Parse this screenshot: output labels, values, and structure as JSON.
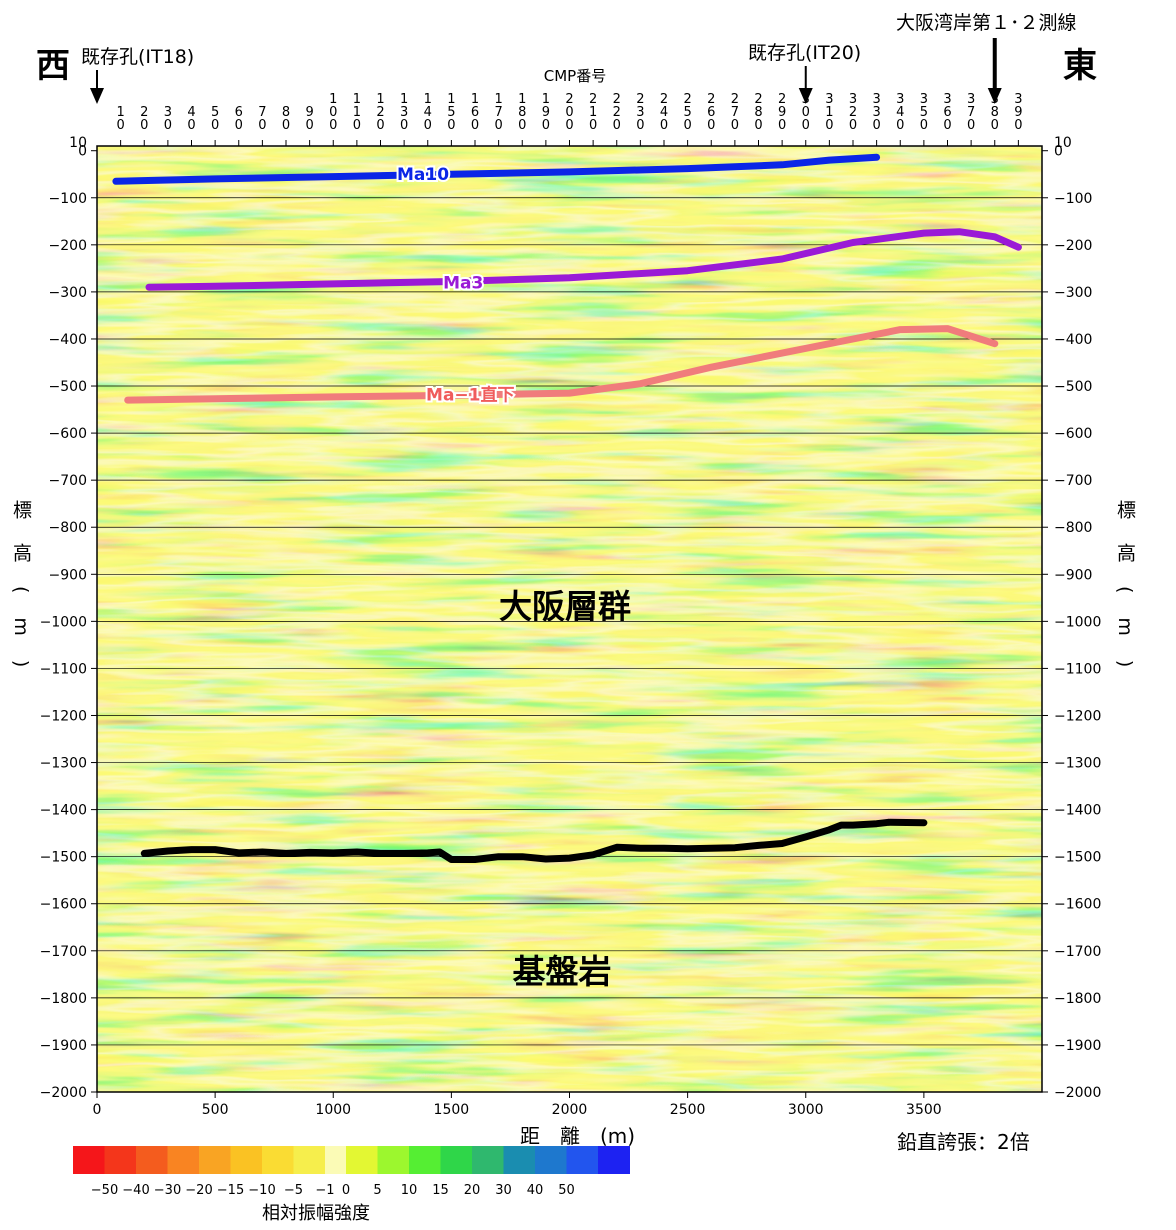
{
  "direction": {
    "west": "西",
    "east": "東"
  },
  "wells": [
    {
      "label": "既存孔(IT18)",
      "x_m": 0
    },
    {
      "label": "既存孔(IT20)",
      "x_m": 3000
    },
    {
      "label": "大阪湾岸第１･２測線",
      "x_m": 3800
    }
  ],
  "cmp": {
    "title": "CMP番号",
    "labels": [
      "10",
      "20",
      "30",
      "40",
      "50",
      "60",
      "70",
      "80",
      "90",
      "100",
      "110",
      "120",
      "130",
      "140",
      "150",
      "160",
      "170",
      "180",
      "190",
      "200",
      "210",
      "220",
      "230",
      "240",
      "250",
      "260",
      "270",
      "280",
      "290",
      "300",
      "310",
      "320",
      "330",
      "340",
      "350",
      "360",
      "370",
      "380",
      "390"
    ]
  },
  "y_axis_label": [
    "標",
    "高",
    "(m)"
  ],
  "y_axis_label_right": [
    "標",
    "高",
    "(m)"
  ],
  "x_axis_label": "距　離　(m)",
  "vertical_exaggeration": "鉛直誇張：2倍",
  "formations": {
    "upper": "大阪層群",
    "lower": "基盤岩"
  },
  "colorbar": {
    "title": "相対振幅強度",
    "neg_colors": [
      "#f5161a",
      "#f4361b",
      "#f45c1e",
      "#f98422",
      "#f9a423",
      "#fac223",
      "#fadc33",
      "#f6ee4c",
      "#fbfbb6"
    ],
    "pos_colors": [
      "#e3f733",
      "#9cf72e",
      "#55ee33",
      "#2fd649",
      "#2fb86e",
      "#1a8db0",
      "#1e78ce",
      "#2255ee",
      "#1d22f2"
    ],
    "neg_labels": [
      "-50",
      "-40",
      "-30",
      "-20",
      "-15",
      "-10",
      "-5",
      "-1"
    ],
    "pos_labels": [
      "0",
      "5",
      "10",
      "15",
      "20",
      "30",
      "40",
      "50"
    ]
  },
  "chart_data": {
    "type": "seismic-section",
    "xlabel": "距　離　(m)",
    "ylabel": "標高(m)",
    "xlim": [
      0,
      4000
    ],
    "ylim": [
      -2000,
      10
    ],
    "xticks": [
      0,
      500,
      1000,
      1500,
      2000,
      2500,
      3000,
      3500
    ],
    "yticks": [
      0,
      -100,
      -200,
      -300,
      -400,
      -500,
      -600,
      -700,
      -800,
      -900,
      -1000,
      -1100,
      -1200,
      -1300,
      -1400,
      -1500,
      -1600,
      -1700,
      -1800,
      -1900,
      -2000
    ],
    "extra_ytick": 10,
    "horizons": [
      {
        "name": "Ma10",
        "color": "#0b26e6",
        "label_color": "#0b26e6",
        "label_x": 1380,
        "label_y": -50,
        "x": [
          80,
          500,
          1000,
          1500,
          2000,
          2500,
          2900,
          3100,
          3300
        ],
        "y": [
          -65,
          -60,
          -55,
          -50,
          -45,
          -38,
          -30,
          -20,
          -14
        ]
      },
      {
        "name": "Ma3",
        "color": "#9a1ad6",
        "label_color": "#9a1ad6",
        "label_x": 1550,
        "label_y": -280,
        "x": [
          220,
          500,
          1000,
          1500,
          2000,
          2500,
          2900,
          3200,
          3500,
          3650,
          3800,
          3900
        ],
        "y": [
          -290,
          -288,
          -283,
          -278,
          -270,
          -255,
          -230,
          -195,
          -175,
          -172,
          -183,
          -205
        ]
      },
      {
        "name": "Ma−1直下",
        "color": "#f07c7c",
        "label_color": "#f05c5c",
        "label_x": 1580,
        "label_y": -518,
        "x": [
          130,
          500,
          1000,
          1500,
          2000,
          2300,
          2600,
          2900,
          3200,
          3400,
          3600,
          3800
        ],
        "y": [
          -530,
          -527,
          -523,
          -520,
          -515,
          -495,
          -460,
          -430,
          -400,
          -380,
          -378,
          -410
        ]
      },
      {
        "name": "",
        "color": "#000000",
        "label_color": "#000000",
        "label_x": 0,
        "label_y": 0,
        "x": [
          200,
          300,
          400,
          500,
          600,
          700,
          800,
          900,
          1000,
          1100,
          1200,
          1300,
          1400,
          1450,
          1500,
          1600,
          1700,
          1800,
          1900,
          2000,
          2100,
          2200,
          2300,
          2400,
          2500,
          2600,
          2700,
          2800,
          2900,
          3000,
          3100,
          3150,
          3200,
          3300,
          3350,
          3500
        ],
        "y": [
          -1493,
          -1488,
          -1485,
          -1485,
          -1492,
          -1490,
          -1493,
          -1491,
          -1492,
          -1490,
          -1493,
          -1493,
          -1492,
          -1490,
          -1506,
          -1506,
          -1500,
          -1500,
          -1505,
          -1503,
          -1496,
          -1480,
          -1482,
          -1482,
          -1483,
          -1482,
          -1481,
          -1476,
          -1472,
          -1458,
          -1443,
          -1433,
          -1433,
          -1430,
          -1427,
          -1428
        ]
      }
    ]
  }
}
